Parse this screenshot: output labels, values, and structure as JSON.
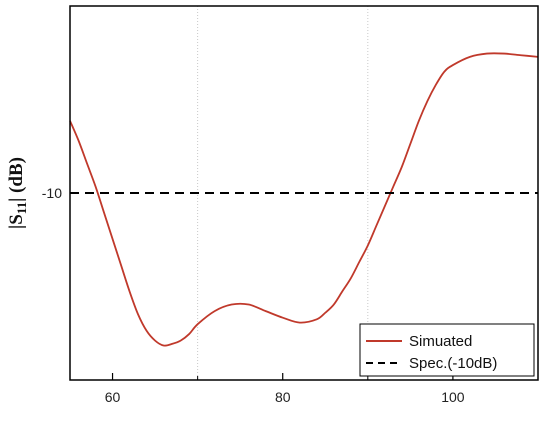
{
  "chart_data": {
    "type": "line",
    "xlim": [
      55,
      110
    ],
    "ylim": [
      -10.57,
      -9.43
    ],
    "grid": "vertical-dotted",
    "legend_position": "bottom-right",
    "x_ticks": [
      {
        "value": 60,
        "label": "60"
      },
      {
        "value": 80,
        "label": "80"
      },
      {
        "value": 100,
        "label": "100"
      }
    ],
    "x_minor_ticks": [
      70,
      90
    ],
    "y_ticks": [
      {
        "value": -10,
        "label": "-10"
      }
    ],
    "ylabel": {
      "bar_open": "|",
      "main": "S",
      "subscript": "11",
      "bar_close": "|",
      "unit": " (dB)"
    },
    "series": [
      {
        "name": "Simuated",
        "color": "#c0392b",
        "style": "solid",
        "x": [
          55,
          56,
          57,
          58,
          59,
          60,
          61,
          62,
          63,
          64,
          65,
          66,
          67,
          68,
          69,
          70,
          72,
          74,
          76,
          78,
          80,
          82,
          84,
          85,
          86,
          87,
          88,
          89,
          90,
          91,
          92,
          93,
          94,
          95,
          96,
          97,
          98,
          99,
          100,
          102,
          104,
          106,
          108,
          110
        ],
        "y": [
          -9.78,
          -9.84,
          -9.91,
          -9.98,
          -10.06,
          -10.14,
          -10.22,
          -10.3,
          -10.37,
          -10.42,
          -10.45,
          -10.465,
          -10.46,
          -10.45,
          -10.43,
          -10.4,
          -10.36,
          -10.34,
          -10.34,
          -10.36,
          -10.38,
          -10.395,
          -10.385,
          -10.365,
          -10.34,
          -10.3,
          -10.26,
          -10.21,
          -10.16,
          -10.1,
          -10.04,
          -9.98,
          -9.92,
          -9.85,
          -9.78,
          -9.72,
          -9.67,
          -9.63,
          -9.61,
          -9.585,
          -9.575,
          -9.575,
          -9.58,
          -9.585
        ]
      },
      {
        "name": "Spec.(-10dB)",
        "color": "#000000",
        "style": "dashed",
        "x": [
          55,
          110
        ],
        "y": [
          -10,
          -10
        ]
      }
    ]
  }
}
